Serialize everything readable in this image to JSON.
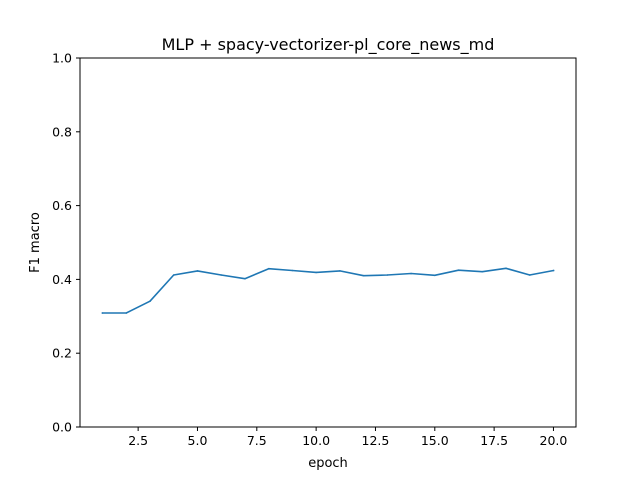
{
  "chart_data": {
    "type": "line",
    "title": "MLP + spacy-vectorizer-pl_core_news_md",
    "xlabel": "epoch",
    "ylabel": "F1 macro",
    "xlim": [
      0.05,
      20.95
    ],
    "ylim": [
      0.0,
      1.0
    ],
    "xticks": [
      2.5,
      5.0,
      7.5,
      10.0,
      12.5,
      15.0,
      17.5,
      20.0
    ],
    "xtick_labels": [
      "2.5",
      "5.0",
      "7.5",
      "10.0",
      "12.5",
      "15.0",
      "17.5",
      "20.0"
    ],
    "yticks": [
      0.0,
      0.2,
      0.4,
      0.6,
      0.8,
      1.0
    ],
    "ytick_labels": [
      "0.0",
      "0.2",
      "0.4",
      "0.6",
      "0.8",
      "1.0"
    ],
    "grid": false,
    "series": [
      {
        "color": "#1f77b4",
        "x": [
          1,
          2,
          3,
          4,
          5,
          6,
          7,
          8,
          9,
          10,
          11,
          12,
          13,
          14,
          15,
          16,
          17,
          18,
          19,
          20
        ],
        "y": [
          0.309,
          0.309,
          0.341,
          0.412,
          0.423,
          0.412,
          0.402,
          0.429,
          0.424,
          0.419,
          0.423,
          0.41,
          0.412,
          0.416,
          0.411,
          0.425,
          0.421,
          0.43,
          0.412,
          0.424
        ]
      }
    ]
  }
}
